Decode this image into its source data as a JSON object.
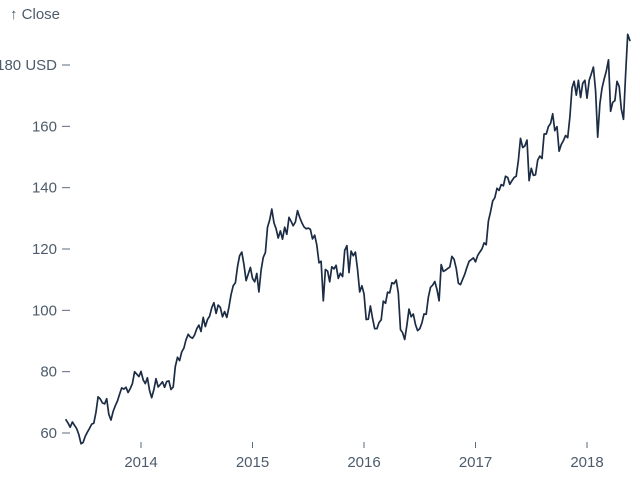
{
  "chart_data": {
    "type": "line",
    "title": "",
    "ylabel": "↑ Close",
    "xlabel": "",
    "unit": "USD",
    "grid": false,
    "legend_position": "none",
    "colors": {
      "line": "#1b2c44",
      "axis_text": "#4d5b6b",
      "tick_mark": "#5d6a79",
      "background": "#ffffff"
    },
    "x_axis": {
      "domain": [
        2013.3,
        2018.42
      ],
      "ticks": [
        {
          "value": 2014,
          "label": "2014"
        },
        {
          "value": 2015,
          "label": "2015"
        },
        {
          "value": 2016,
          "label": "2016"
        },
        {
          "value": 2017,
          "label": "2017"
        },
        {
          "value": 2018,
          "label": "2018"
        }
      ]
    },
    "y_axis": {
      "domain": [
        60,
        180
      ],
      "ticks": [
        {
          "value": 60,
          "label": "60"
        },
        {
          "value": 80,
          "label": "80"
        },
        {
          "value": 100,
          "label": "100"
        },
        {
          "value": 120,
          "label": "120"
        },
        {
          "value": 140,
          "label": "140"
        },
        {
          "value": 160,
          "label": "160"
        },
        {
          "value": 180,
          "label": "180 USD"
        }
      ]
    },
    "series": [
      {
        "name": "Close",
        "t_start": 2013.327,
        "points_per_year": 52,
        "values": [
          64.3,
          63.2,
          61.9,
          63.6,
          62.5,
          61.4,
          59.5,
          56.5,
          56.9,
          59.0,
          60.3,
          61.5,
          62.9,
          63.2,
          66.8,
          71.8,
          71.1,
          69.8,
          69.5,
          71.2,
          66.1,
          64.2,
          67.0,
          68.9,
          70.4,
          72.7,
          74.7,
          74.3,
          74.9,
          73.2,
          74.5,
          76.1,
          80.0,
          79.2,
          78.4,
          80.1,
          77.3,
          76.1,
          78.0,
          73.8,
          71.5,
          74.2,
          77.7,
          75.0,
          75.8,
          76.7,
          74.9,
          76.8,
          77.0,
          74.2,
          75.0,
          81.7,
          84.7,
          83.6,
          86.4,
          87.7,
          90.4,
          92.2,
          91.3,
          90.9,
          92.0,
          94.0,
          95.2,
          93.1,
          97.7,
          94.7,
          97.0,
          98.1,
          100.9,
          102.5,
          99.0,
          101.7,
          101.0,
          97.9,
          99.6,
          97.7,
          101.0,
          105.2,
          108.0,
          109.0,
          114.2,
          117.8,
          119.0,
          115.0,
          109.7,
          111.8,
          114.0,
          110.4,
          109.3,
          112.0,
          106.0,
          113.1,
          117.2,
          118.9,
          127.1,
          129.5,
          133.0,
          128.5,
          126.6,
          123.6,
          125.9,
          123.2,
          127.1,
          124.8,
          130.3,
          129.0,
          127.6,
          128.8,
          132.5,
          130.3,
          128.6,
          127.2,
          126.6,
          126.8,
          126.4,
          123.3,
          124.5,
          121.3,
          115.5,
          116.0,
          103.1,
          113.3,
          112.8,
          109.3,
          114.2,
          113.5,
          114.7,
          110.4,
          112.1,
          111.0,
          119.5,
          121.1,
          112.3,
          119.3,
          117.8,
          119.0,
          113.2,
          106.0,
          108.0,
          105.4,
          97.0,
          97.1,
          101.4,
          97.3,
          94.0,
          94.0,
          96.0,
          96.9,
          103.0,
          102.3,
          105.9,
          105.7,
          109.0,
          108.7,
          109.9,
          105.7,
          93.7,
          92.7,
          90.5,
          95.2,
          100.4,
          97.9,
          98.8,
          95.3,
          93.4,
          94.0,
          95.9,
          98.8,
          98.7,
          104.2,
          107.5,
          108.2,
          109.4,
          106.9,
          103.1,
          114.9,
          112.7,
          113.1,
          113.6,
          114.1,
          117.6,
          116.6,
          113.7,
          108.8,
          108.4,
          110.1,
          111.8,
          114.0,
          116.0,
          116.5,
          117.1,
          115.8,
          117.9,
          119.0,
          120.0,
          122.0,
          121.4,
          129.1,
          132.1,
          135.7,
          136.7,
          139.8,
          139.1,
          141.0,
          140.6,
          143.7,
          143.3,
          141.1,
          142.3,
          143.3,
          143.7,
          149.0,
          156.1,
          153.1,
          153.6,
          155.5,
          142.3,
          146.3,
          144.0,
          144.2,
          149.0,
          150.3,
          149.5,
          157.5,
          157.5,
          159.9,
          161.0,
          164.1,
          158.6,
          159.9,
          151.9,
          154.1,
          155.3,
          157.0,
          156.3,
          163.1,
          172.5,
          174.7,
          170.2,
          175.0,
          169.4,
          174.0,
          175.0,
          169.2,
          175.0,
          177.1,
          179.3,
          171.5,
          156.5,
          167.4,
          172.4,
          175.5,
          178.0,
          181.7,
          164.9,
          167.8,
          168.4,
          174.7,
          173.0,
          165.7,
          162.3,
          176.9,
          190.0,
          188.0
        ]
      }
    ]
  }
}
